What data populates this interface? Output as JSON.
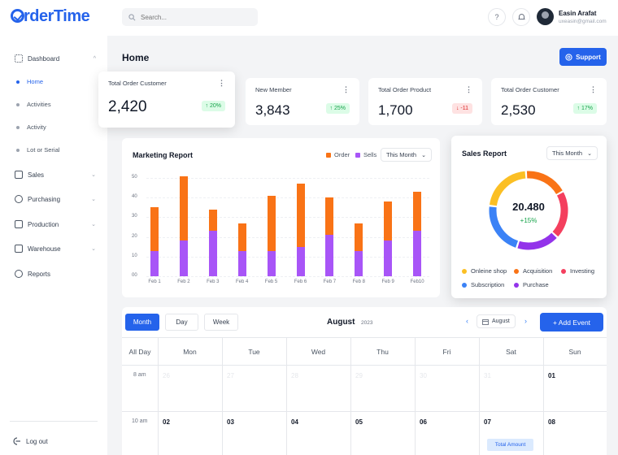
{
  "app": {
    "logo_text": "rderTime"
  },
  "search": {
    "placeholder": "Search..."
  },
  "user": {
    "name": "Easin Arafat",
    "email": "uxeasin@gmail.com"
  },
  "sidebar": {
    "dashboard": "Dashboard",
    "sub": [
      "Home",
      "Activities",
      "Activity",
      "Lot or Serial"
    ],
    "items": [
      "Sales",
      "Purchasing",
      "Production",
      "Warehouse",
      "Reports"
    ],
    "logout": "Log out"
  },
  "page": {
    "title": "Home",
    "support": "Support"
  },
  "stats": [
    {
      "title": "Total Order Customer",
      "value": "2,420",
      "badge": "↑ 20%",
      "trend": "up"
    },
    {
      "title": "New Member",
      "value": "3,843",
      "badge": "↑ 25%",
      "trend": "up"
    },
    {
      "title": "Total Order Product",
      "value": "1,700",
      "badge": "↓ -11",
      "trend": "down"
    },
    {
      "title": "Total Order Customer",
      "value": "2,530",
      "badge": "↑ 17%",
      "trend": "up"
    }
  ],
  "chart_data": [
    {
      "type": "bar",
      "title": "Marketing Report",
      "categories": [
        "Feb 1",
        "Feb 2",
        "Feb 3",
        "Feb 4",
        "Feb 5",
        "Feb 6",
        "Feb 7",
        "Feb 8",
        "Feb 9",
        "Feb10"
      ],
      "series": [
        {
          "name": "Sells",
          "values": [
            13,
            18,
            23,
            13,
            13,
            15,
            21,
            13,
            18,
            23
          ],
          "color": "#a855f7"
        },
        {
          "name": "Order",
          "values": [
            22,
            33,
            11,
            14,
            28,
            32,
            19,
            14,
            20,
            20
          ],
          "color": "#f97316"
        }
      ],
      "stacked": true,
      "yticks": [
        "00",
        "10",
        "20",
        "30",
        "40",
        "50"
      ],
      "ylim": [
        0,
        50
      ],
      "filter": "This Month"
    },
    {
      "type": "pie",
      "title": "Sales Report",
      "center_value": "20.480",
      "center_change": "+15%",
      "filter": "This Month",
      "slices": [
        {
          "name": "Onleine shop",
          "value": 22,
          "color": "#fbbf24"
        },
        {
          "name": "Acquisition",
          "value": 18,
          "color": "#f97316"
        },
        {
          "name": "Investing",
          "value": 20,
          "color": "#f43f5e"
        },
        {
          "name": "Purchase",
          "value": 18,
          "color": "#9333ea"
        },
        {
          "name": "Subscription",
          "value": 22,
          "color": "#3b82f6"
        }
      ]
    }
  ],
  "calendar": {
    "tabs": [
      "Month",
      "Day",
      "Week"
    ],
    "month": "August",
    "year": "2023",
    "month_picker": "August",
    "add_event": "+ Add Event",
    "allday": "All Day",
    "days": [
      "Mon",
      "Tue",
      "Wed",
      "Thu",
      "Fri",
      "Sat",
      "Sun"
    ],
    "times": [
      "8 am",
      "10 am"
    ],
    "row1": [
      "26",
      "27",
      "28",
      "29",
      "30",
      "31",
      "01"
    ],
    "row2": [
      "02",
      "03",
      "04",
      "05",
      "06",
      "07",
      "08"
    ],
    "event": "Total Amount"
  }
}
